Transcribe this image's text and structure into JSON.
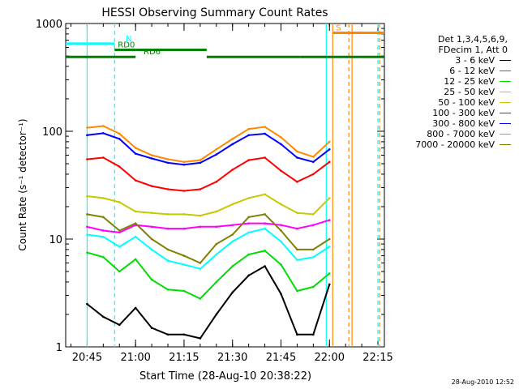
{
  "chart_data": {
    "type": "line",
    "title": "HESSI Observing Summary Count Rates",
    "xlabel": "Start Time (28-Aug-10 20:38:22)",
    "ylabel": "Count Rate (s⁻¹ detector⁻¹)",
    "yscale": "log",
    "ylim": [
      1,
      1000
    ],
    "y_ticks": [
      "1",
      "10",
      "100",
      "1000"
    ],
    "xlim": [
      "20:38:22",
      "22:17:00"
    ],
    "x_ticks": [
      "20:45",
      "21:00",
      "21:15",
      "21:30",
      "21:45",
      "22:00",
      "22:15"
    ],
    "grid": false,
    "legend_placement": "right",
    "legend_header": [
      "Det 1,3,4,5,6,9,",
      "FDecim 1, Att 0"
    ],
    "footer": "28-Aug-2010 12:52",
    "x": [
      "20:45",
      "20:50",
      "20:55",
      "21:00",
      "21:05",
      "21:10",
      "21:15",
      "21:20",
      "21:25",
      "21:30",
      "21:35",
      "21:40",
      "21:45",
      "21:50",
      "21:55",
      "22:00"
    ],
    "series": [
      {
        "name": "3 - 6 keV",
        "color": "#000000",
        "values": [
          2.5,
          1.9,
          1.6,
          2.3,
          1.5,
          1.3,
          1.3,
          1.2,
          2.0,
          3.2,
          4.6,
          5.6,
          3.1,
          1.3,
          1.3,
          3.8
        ]
      },
      {
        "name": "6 - 12 keV",
        "color": "#ff00ff",
        "values": [
          13,
          12,
          11.5,
          13.5,
          13,
          12.5,
          12.5,
          13,
          13,
          13.5,
          14,
          14,
          13.5,
          12.5,
          13.5,
          15
        ]
      },
      {
        "name": "12 - 25 keV",
        "color": "#00dd00",
        "values": [
          7.5,
          6.8,
          5.0,
          6.5,
          4.2,
          3.4,
          3.3,
          2.8,
          4.0,
          5.6,
          7.2,
          7.8,
          5.8,
          3.3,
          3.6,
          4.8
        ]
      },
      {
        "name": "25 - 50 keV",
        "color": "#00ffff",
        "values": [
          11,
          10.5,
          8.5,
          10.5,
          8.0,
          6.3,
          5.8,
          5.3,
          7.2,
          9.5,
          11.5,
          12.5,
          9.5,
          6.4,
          6.8,
          8.5
        ]
      },
      {
        "name": "50 - 100 keV",
        "color": "#c8c800",
        "values": [
          25,
          24,
          22,
          18,
          17.5,
          17,
          17,
          16.5,
          18,
          21,
          24,
          26,
          21,
          17.5,
          17,
          24
        ]
      },
      {
        "name": "100 - 300 keV",
        "color": "#ff0000",
        "values": [
          55,
          57,
          47,
          35,
          31,
          29,
          28,
          29,
          34,
          44,
          54,
          57,
          43,
          34,
          40,
          52
        ]
      },
      {
        "name": "300 - 800 keV",
        "color": "#0000ff",
        "values": [
          92,
          96,
          85,
          62,
          56,
          51,
          49,
          51,
          61,
          76,
          92,
          95,
          76,
          57,
          52,
          68
        ]
      },
      {
        "name": "800 - 7000 keV",
        "color": "#ff8800",
        "values": [
          108,
          112,
          95,
          70,
          60,
          55,
          52,
          54,
          68,
          85,
          105,
          110,
          88,
          65,
          58,
          80
        ]
      },
      {
        "name": "7000 - 20000 keV",
        "color": "#808000",
        "values": [
          17,
          16,
          12,
          14,
          10,
          8,
          7,
          6,
          9,
          11,
          16,
          17,
          12,
          8,
          8,
          10
        ]
      }
    ],
    "flag_bars": [
      {
        "label": "N",
        "color": "#00ffff",
        "segments": [
          [
            "20:38:22",
            "20:53:30"
          ]
        ],
        "level": 650
      },
      {
        "label": "RD0",
        "color": "#008000",
        "segments": [
          [
            "20:53:30",
            "21:00:00"
          ],
          [
            "21:00:00",
            "21:22:00"
          ]
        ],
        "level": 570
      },
      {
        "label": "RD6",
        "color": "#008000",
        "segments": [
          [
            "20:38:22",
            "21:00:00"
          ],
          [
            "21:22:00",
            "21:51:00"
          ],
          [
            "21:51:00",
            "22:17:00"
          ]
        ],
        "level": 490
      },
      {
        "label": "S",
        "color": "#ff8800",
        "segments": [
          [
            "22:01:00",
            "22:17:00"
          ]
        ],
        "level": 820
      }
    ],
    "vertical_markers": [
      {
        "time": "20:45:00",
        "color": "#00ffff",
        "style": "solid"
      },
      {
        "time": "20:53:30",
        "color": "#00ffff",
        "style": "dashed"
      },
      {
        "time": "21:59:00",
        "color": "#00ffff",
        "style": "solid"
      },
      {
        "time": "22:01:00",
        "color": "#ff8800",
        "style": "solid"
      },
      {
        "time": "22:06:00",
        "color": "#ff8800",
        "style": "dashed"
      },
      {
        "time": "22:07:00",
        "color": "#ff8800",
        "style": "solid"
      },
      {
        "time": "22:15:00",
        "color": "#00ffff",
        "style": "dashed"
      },
      {
        "time": "22:15:30",
        "color": "#ff8800",
        "style": "dashed"
      }
    ]
  }
}
